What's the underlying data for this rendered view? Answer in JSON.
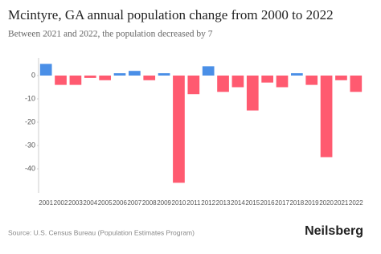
{
  "chart_data": {
    "type": "bar",
    "title": "Mcintyre, GA annual population change from 2000 to 2022",
    "subtitle": "Between 2021 and 2022, the population decreased by 7",
    "source": "Source: U.S. Census Bureau (Population Estimates Program)",
    "brand": "Neilsberg",
    "categories": [
      "2001",
      "2002",
      "2003",
      "2004",
      "2005",
      "2006",
      "2007",
      "2008",
      "2009",
      "2010",
      "2011",
      "2012",
      "2013",
      "2014",
      "2015",
      "2016",
      "2017",
      "2018",
      "2019",
      "2020",
      "2021",
      "2022"
    ],
    "values": [
      5,
      -4,
      -4,
      -1,
      -2,
      1,
      2,
      -2,
      1,
      -46,
      -8,
      4,
      -7,
      -5,
      -15,
      -3,
      -5,
      1,
      -4,
      -35,
      -2,
      -7
    ],
    "positive_color": "#4a8fe7",
    "negative_color": "#ff5a70",
    "ylim": [
      -49,
      7
    ],
    "yticks": [
      0,
      -10,
      -20,
      -30,
      -40
    ]
  }
}
